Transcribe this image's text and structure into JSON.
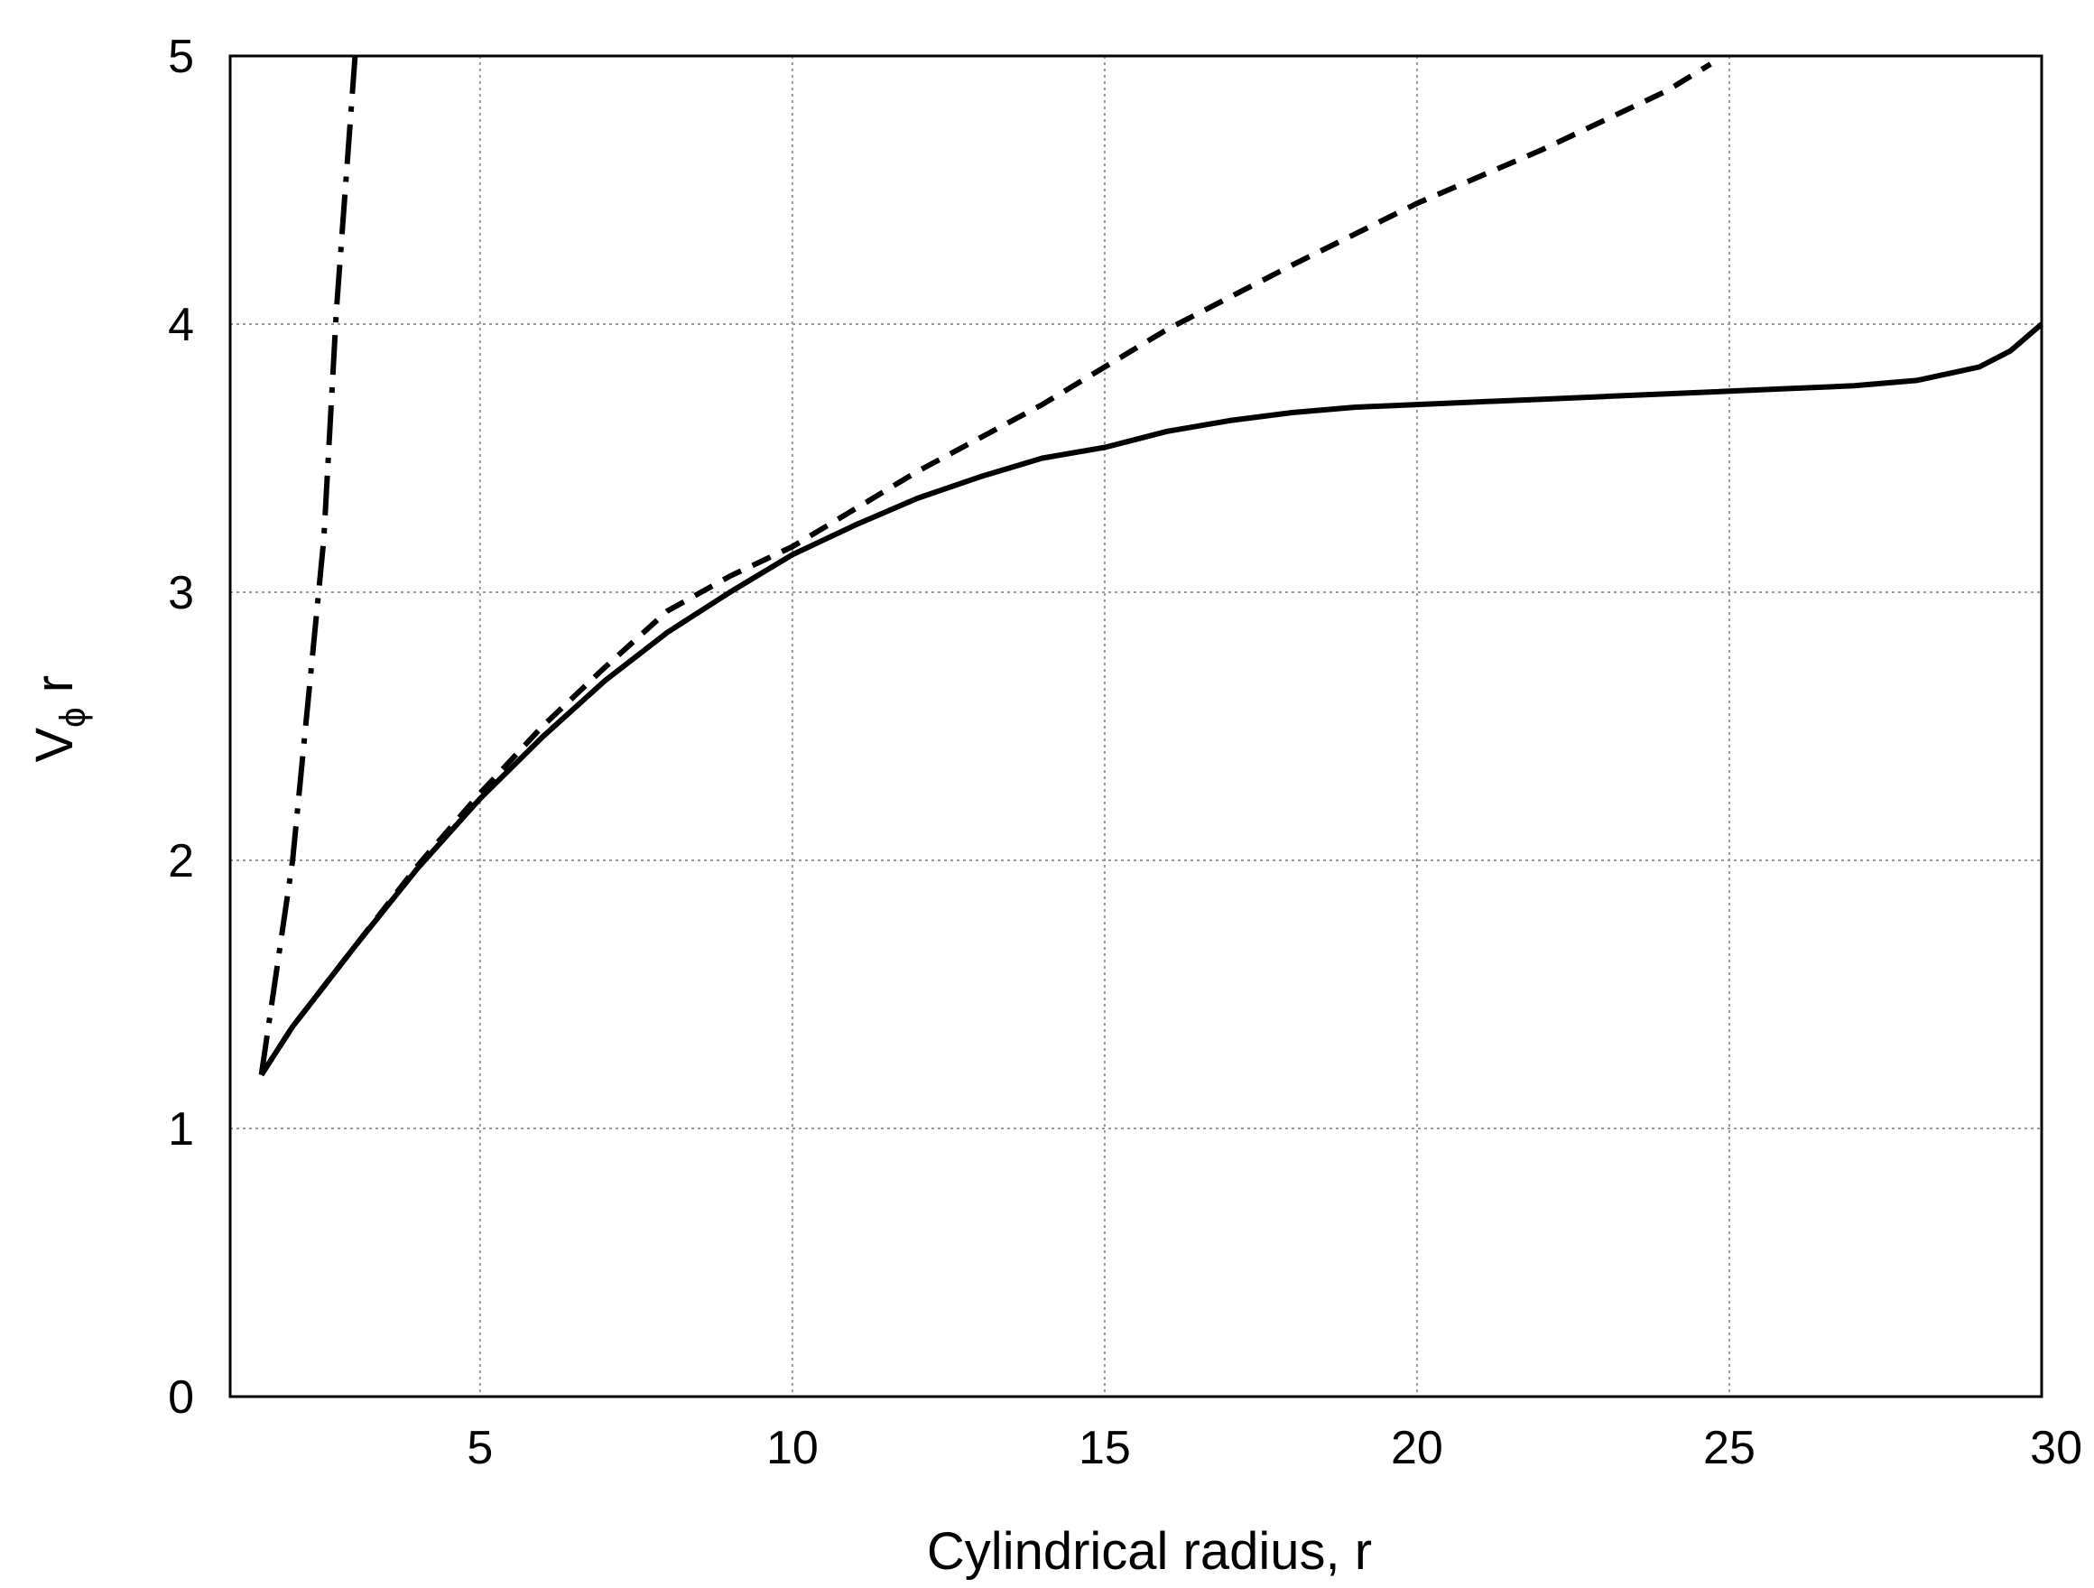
{
  "chart_data": {
    "type": "line",
    "title": "",
    "xlabel": "Cylindrical radius, r",
    "ylabel_main": "V",
    "ylabel_sub": "ϕ",
    "ylabel_tail": " r",
    "xlim": [
      1,
      30
    ],
    "ylim": [
      0,
      5
    ],
    "x_ticks": [
      5,
      10,
      15,
      20,
      25,
      30
    ],
    "y_ticks": [
      0,
      1,
      2,
      3,
      4,
      5
    ],
    "grid": true,
    "legend": false,
    "series": [
      {
        "style": "solid",
        "points": [
          [
            1.5,
            1.2
          ],
          [
            2,
            1.38
          ],
          [
            3,
            1.68
          ],
          [
            4,
            1.97
          ],
          [
            5,
            2.23
          ],
          [
            6,
            2.46
          ],
          [
            7,
            2.67
          ],
          [
            8,
            2.85
          ],
          [
            9,
            3.0
          ],
          [
            10,
            3.14
          ],
          [
            11,
            3.25
          ],
          [
            12,
            3.35
          ],
          [
            13,
            3.43
          ],
          [
            14,
            3.5
          ],
          [
            15,
            3.54
          ],
          [
            16,
            3.6
          ],
          [
            17,
            3.64
          ],
          [
            18,
            3.67
          ],
          [
            19,
            3.69
          ],
          [
            20,
            3.7
          ],
          [
            21,
            3.71
          ],
          [
            22,
            3.72
          ],
          [
            23,
            3.73
          ],
          [
            24,
            3.74
          ],
          [
            25,
            3.75
          ],
          [
            26,
            3.76
          ],
          [
            27,
            3.77
          ],
          [
            28,
            3.79
          ],
          [
            29,
            3.84
          ],
          [
            29.5,
            3.9
          ],
          [
            30,
            4.0
          ]
        ]
      },
      {
        "style": "dashed",
        "points": [
          [
            1.5,
            1.2
          ],
          [
            2,
            1.38
          ],
          [
            3,
            1.68
          ],
          [
            4,
            1.98
          ],
          [
            5,
            2.25
          ],
          [
            6,
            2.5
          ],
          [
            7,
            2.72
          ],
          [
            8,
            2.93
          ],
          [
            9,
            3.06
          ],
          [
            10,
            3.17
          ],
          [
            12,
            3.45
          ],
          [
            14,
            3.7
          ],
          [
            16,
            3.98
          ],
          [
            18,
            4.22
          ],
          [
            20,
            4.45
          ],
          [
            22,
            4.65
          ],
          [
            24,
            4.87
          ],
          [
            24.7,
            4.97
          ]
        ]
      },
      {
        "style": "dash-dot",
        "points": [
          [
            1.5,
            1.2
          ],
          [
            2.0,
            2.0
          ],
          [
            2.5,
            3.2
          ],
          [
            2.7,
            4.05
          ],
          [
            3.0,
            5.0
          ]
        ]
      }
    ]
  }
}
